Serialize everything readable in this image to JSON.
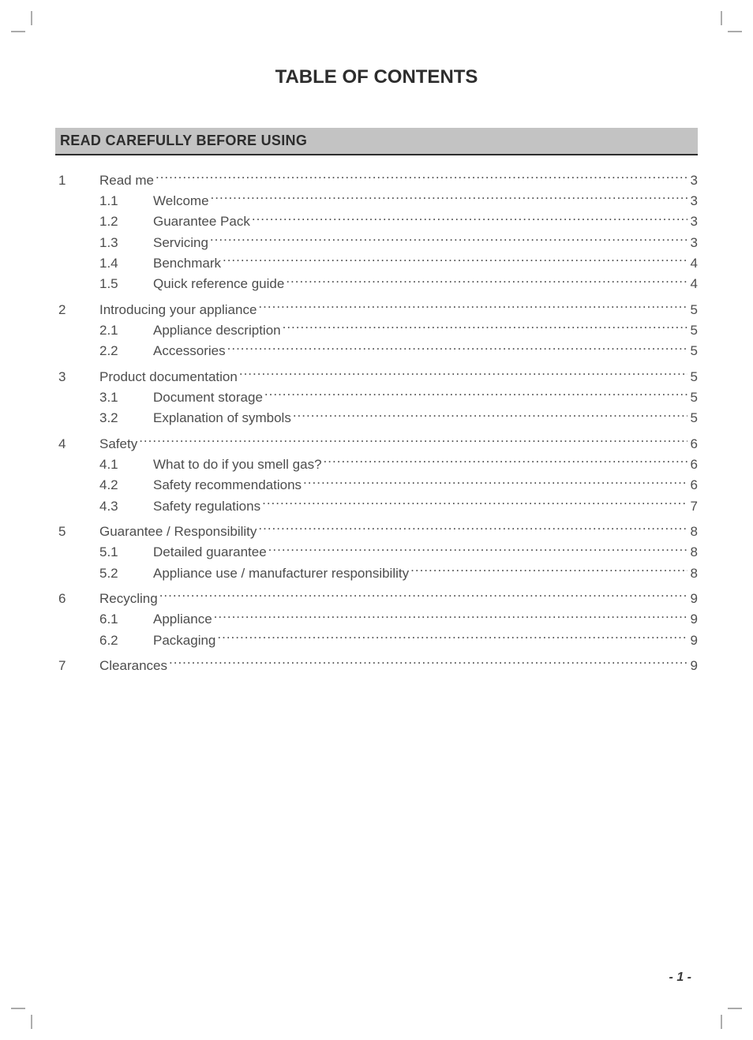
{
  "title": "TABLE OF CONTENTS",
  "section_banner": "READ CAREFULLY BEFORE USING",
  "page_number": "- 1 -",
  "colors": {
    "text": "#4d4d4d",
    "heading": "#2d2d2d",
    "banner_bg": "#c3c3c3",
    "banner_border": "#2d2d2d",
    "page_bg": "#ffffff"
  },
  "typography": {
    "title_fontsize": 24,
    "banner_fontsize": 18,
    "body_fontsize": 17,
    "pagenum_fontsize": 16,
    "font_family": "Arial"
  },
  "toc": [
    {
      "num": "1",
      "label": "Read me",
      "page": "3",
      "children": [
        {
          "num": "1.1",
          "label": "Welcome",
          "page": "3"
        },
        {
          "num": "1.2",
          "label": "Guarantee Pack",
          "page": "3"
        },
        {
          "num": "1.3",
          "label": "Servicing",
          "page": "3"
        },
        {
          "num": "1.4",
          "label": "Benchmark",
          "page": "4"
        },
        {
          "num": "1.5",
          "label": "Quick reference guide",
          "page": "4"
        }
      ]
    },
    {
      "num": "2",
      "label": "Introducing your appliance",
      "page": "5",
      "children": [
        {
          "num": "2.1",
          "label": "Appliance description",
          "page": "5"
        },
        {
          "num": "2.2",
          "label": "Accessories",
          "page": "5"
        }
      ]
    },
    {
      "num": "3",
      "label": "Product documentation",
      "page": "5",
      "children": [
        {
          "num": "3.1",
          "label": "Document storage",
          "page": "5"
        },
        {
          "num": "3.2",
          "label": "Explanation of symbols",
          "page": "5"
        }
      ]
    },
    {
      "num": "4",
      "label": "Safety",
      "page": "6",
      "children": [
        {
          "num": "4.1",
          "label": "What to do if you smell gas?",
          "page": "6"
        },
        {
          "num": "4.2",
          "label": "Safety recommendations",
          "page": "6"
        },
        {
          "num": "4.3",
          "label": "Safety regulations",
          "page": "7"
        }
      ]
    },
    {
      "num": "5",
      "label": "Guarantee / Responsibility",
      "page": "8",
      "children": [
        {
          "num": "5.1",
          "label": "Detailed guarantee",
          "page": "8"
        },
        {
          "num": "5.2",
          "label": "Appliance use / manufacturer responsibility",
          "page": "8"
        }
      ]
    },
    {
      "num": "6",
      "label": "Recycling",
      "page": "9",
      "children": [
        {
          "num": "6.1",
          "label": "Appliance",
          "page": "9"
        },
        {
          "num": "6.2",
          "label": "Packaging",
          "page": "9"
        }
      ]
    },
    {
      "num": "7",
      "label": "Clearances",
      "page": "9",
      "children": []
    }
  ]
}
